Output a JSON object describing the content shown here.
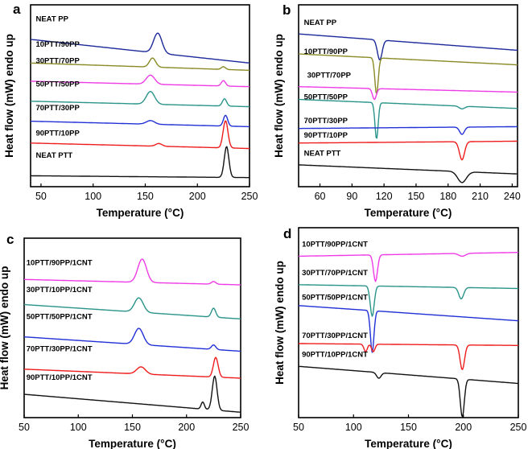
{
  "colors": {
    "navy": "#1c2a9a",
    "olive": "#8a8a26",
    "magenta": "#ee3be6",
    "teal": "#2a948a",
    "blue": "#2231d6",
    "red": "#ee1c1c",
    "black": "#111111"
  },
  "chart_data": [
    {
      "panel": "a",
      "type": "line",
      "xlabel": "Temperature (°C)",
      "ylabel": "Heat flow (mW) endo up",
      "xlim": [
        40,
        250
      ],
      "ylim": [
        0,
        100
      ],
      "xticks": [
        50,
        100,
        150,
        200,
        250
      ],
      "series": [
        {
          "name": "NEAT PP",
          "color": "#1c2a9a",
          "base_left": 81,
          "base_right": 68,
          "label_x": 45,
          "label_y": 91,
          "peaks": [
            {
              "x": 162,
              "h": 11,
              "w": 4
            }
          ]
        },
        {
          "name": "10PTT/90PP",
          "color": "#8a8a26",
          "base_left": 68,
          "base_right": 64,
          "label_x": 45,
          "label_y": 77,
          "peaks": [
            {
              "x": 157,
              "h": 5,
              "w": 3
            },
            {
              "x": 225,
              "h": 1.5,
              "w": 2
            }
          ]
        },
        {
          "name": "30PTT/70PP",
          "color": "#ee3be6",
          "base_left": 58,
          "base_right": 55,
          "label_x": 45,
          "label_y": 68,
          "peaks": [
            {
              "x": 155,
              "h": 5,
              "w": 4
            },
            {
              "x": 225,
              "h": 3,
              "w": 2
            }
          ]
        },
        {
          "name": "50PTT/50PP",
          "color": "#2a948a",
          "base_left": 47,
          "base_right": 44,
          "label_x": 45,
          "label_y": 55,
          "peaks": [
            {
              "x": 155,
              "h": 7,
              "w": 4
            },
            {
              "x": 226,
              "h": 4,
              "w": 2
            }
          ]
        },
        {
          "name": "70PTT/30PP",
          "color": "#2231d6",
          "base_left": 36,
          "base_right": 33,
          "label_x": 45,
          "label_y": 42,
          "peaks": [
            {
              "x": 155,
              "h": 2,
              "w": 4
            },
            {
              "x": 227,
              "h": 6,
              "w": 2
            }
          ]
        },
        {
          "name": "90PTT/10PP",
          "color": "#ee1c1c",
          "base_left": 24,
          "base_right": 21,
          "label_x": 45,
          "label_y": 28,
          "peaks": [
            {
              "x": 163,
              "h": 1.5,
              "w": 3
            },
            {
              "x": 227,
              "h": 15,
              "w": 2.3
            }
          ]
        },
        {
          "name": "NEAT PTT",
          "color": "#111111",
          "base_left": 6,
          "base_right": 5,
          "label_x": 45,
          "label_y": 16,
          "peaks": [
            {
              "x": 228,
              "h": 17,
              "w": 2.2
            }
          ]
        }
      ]
    },
    {
      "panel": "b",
      "type": "line",
      "xlabel": "Temperature (°C)",
      "ylabel": "Heat flow (mW) endo up",
      "xlim": [
        40,
        245
      ],
      "ylim": [
        0,
        100
      ],
      "xticks": [
        60,
        90,
        120,
        150,
        180,
        210,
        240
      ],
      "series": [
        {
          "name": "NEAT PP",
          "color": "#1c2a9a",
          "base_left": 84,
          "base_right": 75,
          "label_x": 45,
          "label_y": 89,
          "peaks": [
            {
              "x": 116,
              "h": -11,
              "w": 2.2
            }
          ]
        },
        {
          "name": "10PTT/90PP",
          "color": "#8a8a26",
          "base_left": 73,
          "base_right": 67,
          "label_x": 45,
          "label_y": 73,
          "peaks": [
            {
              "x": 113,
              "h": -20,
              "w": 1.6
            }
          ]
        },
        {
          "name": "30PTT/70PP",
          "color": "#ee3be6",
          "base_left": 55,
          "base_right": 52,
          "label_x": 48,
          "label_y": 60,
          "peaks": [
            {
              "x": 111,
              "h": -6,
              "w": 1.8
            }
          ]
        },
        {
          "name": "50PTT/50PP",
          "color": "#2a948a",
          "base_left": 48,
          "base_right": 43,
          "label_x": 45,
          "label_y": 48,
          "peaks": [
            {
              "x": 113,
              "h": -20,
              "w": 1.5
            },
            {
              "x": 193,
              "h": -1.5,
              "w": 2.5
            }
          ]
        },
        {
          "name": "70PTT/30PP",
          "color": "#2231d6",
          "base_left": 32,
          "base_right": 33,
          "label_x": 45,
          "label_y": 35,
          "peaks": [
            {
              "x": 193,
              "h": -4,
              "w": 2.2
            }
          ]
        },
        {
          "name": "90PTT/10PP",
          "color": "#ee1c1c",
          "base_left": 24,
          "base_right": 25,
          "label_x": 45,
          "label_y": 27,
          "peaks": [
            {
              "x": 193,
              "h": -10,
              "w": 2.4
            }
          ]
        },
        {
          "name": "NEAT PTT",
          "color": "#111111",
          "base_left": 12,
          "base_right": 7,
          "label_x": 45,
          "label_y": 17,
          "peaks": [
            {
              "x": 193,
              "h": -6,
              "w": 4
            }
          ]
        }
      ]
    },
    {
      "panel": "c",
      "type": "line",
      "xlabel": "Temperature (°C)",
      "ylabel": "Heat flow (mW) endo up",
      "xlim": [
        50,
        250
      ],
      "ylim": [
        0,
        100
      ],
      "xticks": [
        50,
        100,
        150,
        200,
        250
      ],
      "series": [
        {
          "name": "10PTT/90PP/1CNT",
          "color": "#ee3be6",
          "base_left": 77,
          "base_right": 74,
          "label_x": 52,
          "label_y": 85,
          "peaks": [
            {
              "x": 159,
              "h": 13,
              "w": 4
            },
            {
              "x": 225,
              "h": 1.5,
              "w": 2
            }
          ]
        },
        {
          "name": "30PTT/10PP/1CNT",
          "color": "#2a948a",
          "base_left": 63,
          "base_right": 55,
          "label_x": 52,
          "label_y": 70,
          "peaks": [
            {
              "x": 156,
              "h": 8,
              "w": 4
            },
            {
              "x": 225,
              "h": 5,
              "w": 2
            }
          ]
        },
        {
          "name": "50PTT/50PP/1CNT",
          "color": "#2231d6",
          "base_left": 45,
          "base_right": 37,
          "label_x": 52,
          "label_y": 55,
          "peaks": [
            {
              "x": 156,
              "h": 9,
              "w": 4
            },
            {
              "x": 225,
              "h": 2.5,
              "w": 2
            }
          ]
        },
        {
          "name": "70PTT/30PP/1CNT",
          "color": "#ee1c1c",
          "base_left": 27,
          "base_right": 22,
          "label_x": 52,
          "label_y": 37,
          "peaks": [
            {
              "x": 158,
              "h": 4,
              "w": 4
            },
            {
              "x": 227,
              "h": 11,
              "w": 2.2
            }
          ]
        },
        {
          "name": "90PTT/10PP/1CNT",
          "color": "#111111",
          "base_left": 13,
          "base_right": 3,
          "label_x": 52,
          "label_y": 21,
          "peaks": [
            {
              "x": 215,
              "h": 4,
              "w": 1.5
            },
            {
              "x": 226,
              "h": 19,
              "w": 2.2
            }
          ]
        }
      ]
    },
    {
      "panel": "d",
      "type": "line",
      "xlabel": "Temperature (°C)",
      "ylabel": "Heat flow (mW) endo up",
      "xlim": [
        50,
        250
      ],
      "ylim": [
        0,
        100
      ],
      "xticks": [
        50,
        100,
        150,
        200,
        250
      ],
      "series": [
        {
          "name": "10PTT/90PP/1CNT",
          "color": "#ee3be6",
          "base_left": 85,
          "base_right": 87,
          "label_x": 53,
          "label_y": 90,
          "peaks": [
            {
              "x": 120,
              "h": -14,
              "w": 1.8
            },
            {
              "x": 199,
              "h": -1.5,
              "w": 3
            }
          ]
        },
        {
          "name": "30PTT/70PP/1CNT",
          "color": "#2a948a",
          "base_left": 70,
          "base_right": 68,
          "label_x": 53,
          "label_y": 75,
          "peaks": [
            {
              "x": 117,
              "h": -16,
              "w": 1.8
            },
            {
              "x": 198,
              "h": -6,
              "w": 2.2
            }
          ]
        },
        {
          "name": "50PTT/50PP/1CNT",
          "color": "#2231d6",
          "base_left": 59,
          "base_right": 51,
          "label_x": 53,
          "label_y": 62,
          "peaks": [
            {
              "x": 117,
              "h": -22,
              "w": 1.6
            }
          ]
        },
        {
          "name": "70PTT/30PP/1CNT",
          "color": "#ee1c1c",
          "base_left": 39,
          "base_right": 38,
          "label_x": 53,
          "label_y": 42,
          "peaks": [
            {
              "x": 111,
              "h": -4,
              "w": 1.5
            },
            {
              "x": 118,
              "h": -4,
              "w": 1.5
            },
            {
              "x": 199,
              "h": -13,
              "w": 2
            }
          ]
        },
        {
          "name": "90PTT/10PP/1CNT",
          "color": "#111111",
          "base_left": 27,
          "base_right": 18,
          "label_x": 53,
          "label_y": 32,
          "peaks": [
            {
              "x": 123,
              "h": -3,
              "w": 2
            },
            {
              "x": 199,
              "h": -20,
              "w": 1.8
            }
          ]
        }
      ]
    }
  ]
}
